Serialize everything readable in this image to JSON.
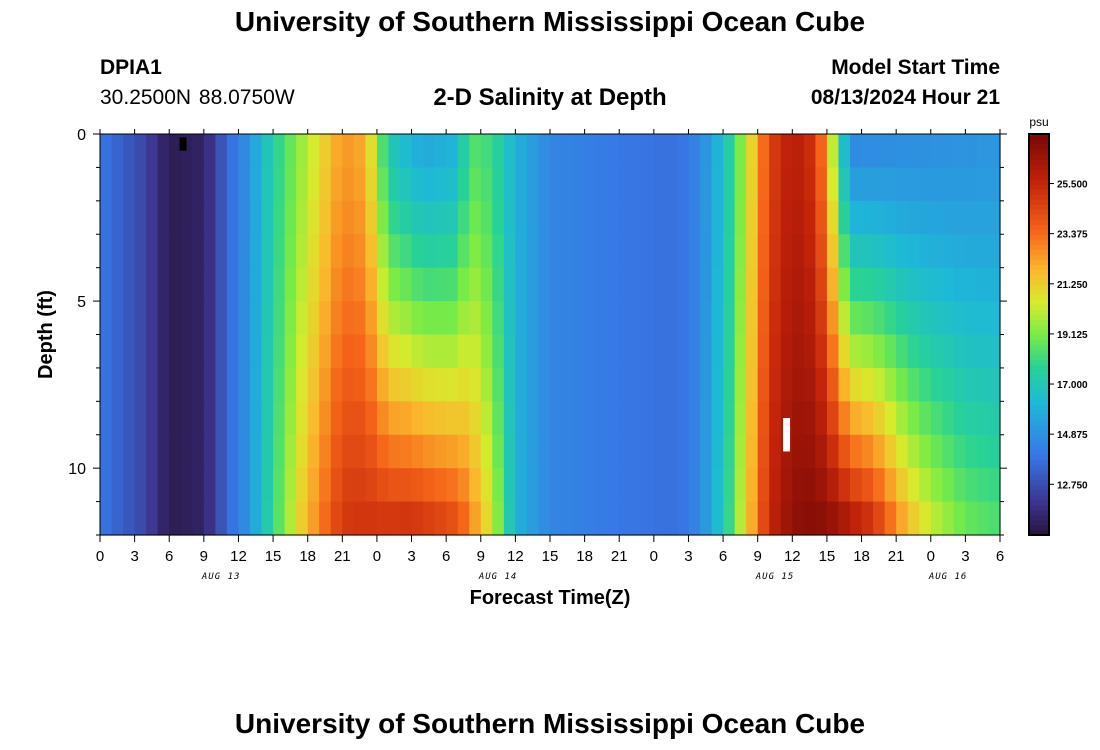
{
  "header": {
    "title": "University of Southern Mississippi Ocean Cube",
    "station": "DPIA1",
    "coords": "30.2500N  88.0750W",
    "subtitle": "2-D Salinity at Depth",
    "start_label": "Model Start Time",
    "start_value": "08/13/2024 Hour 21"
  },
  "footer": {
    "title": "University of Southern Mississippi Ocean Cube"
  },
  "chart_data": {
    "type": "heatmap",
    "title": "2-D Salinity at Depth",
    "xlabel": "Forecast Time(Z)",
    "ylabel": "Depth (ft)",
    "xlim_hours": [
      0,
      78
    ],
    "ylim": [
      0,
      12
    ],
    "y_ticks": [
      0,
      5,
      10
    ],
    "x_tick_hours": [
      0,
      3,
      6,
      9,
      12,
      15,
      18,
      21,
      24,
      27,
      30,
      33,
      36,
      39,
      42,
      45,
      48,
      51,
      54,
      57,
      60,
      63,
      66,
      69,
      72,
      75,
      78
    ],
    "x_tick_labels": [
      "0",
      "3",
      "6",
      "9",
      "12",
      "15",
      "18",
      "21",
      "0",
      "3",
      "6",
      "9",
      "12",
      "15",
      "18",
      "21",
      "0",
      "3",
      "6",
      "9",
      "12",
      "15",
      "18",
      "21",
      "0",
      "3",
      "6"
    ],
    "date_labels": [
      {
        "label": "AUG 13",
        "hour": 10.5
      },
      {
        "label": "AUG 14",
        "hour": 34.5
      },
      {
        "label": "AUG 15",
        "hour": 58.5
      },
      {
        "label": "AUG 16",
        "hour": 73.5
      }
    ],
    "colorbar": {
      "unit": "psu",
      "min": 10.6,
      "max": 27.6,
      "ticks": [
        12.75,
        14.875,
        17.0,
        19.125,
        21.25,
        23.375,
        25.5
      ],
      "tick_labels": [
        "12.750",
        "14.875",
        "17.000",
        "19.125",
        "21.250",
        "23.375",
        "25.500"
      ]
    },
    "depth_levels": 12,
    "surface_salinity_by_hour": [
      [
        0,
        14.0
      ],
      [
        4,
        12.5
      ],
      [
        6,
        11.0
      ],
      [
        9,
        11.3
      ],
      [
        11,
        13.5
      ],
      [
        13,
        15.0
      ],
      [
        15,
        17.5
      ],
      [
        18,
        20.0
      ],
      [
        21,
        22.5
      ],
      [
        23,
        22.0
      ],
      [
        24,
        19.5
      ],
      [
        25,
        17.0
      ],
      [
        28,
        15.5
      ],
      [
        31,
        16.0
      ],
      [
        32,
        18.5
      ],
      [
        34,
        18.0
      ],
      [
        36,
        16.0
      ],
      [
        39,
        14.5
      ],
      [
        45,
        14.0
      ],
      [
        50,
        13.8
      ],
      [
        52,
        14.5
      ],
      [
        54,
        16.5
      ],
      [
        56,
        20.0
      ],
      [
        58,
        24.5
      ],
      [
        60,
        26.0
      ],
      [
        62,
        25.0
      ],
      [
        63,
        22.0
      ],
      [
        64,
        18.0
      ],
      [
        65,
        14.5
      ],
      [
        78,
        15.0
      ]
    ],
    "bottom_salinity_by_hour": [
      [
        0,
        14.0
      ],
      [
        4,
        12.5
      ],
      [
        6,
        11.0
      ],
      [
        9,
        11.3
      ],
      [
        11,
        13.5
      ],
      [
        13,
        15.0
      ],
      [
        15,
        18.0
      ],
      [
        18,
        22.0
      ],
      [
        21,
        25.0
      ],
      [
        27,
        25.5
      ],
      [
        31,
        24.5
      ],
      [
        34,
        20.5
      ],
      [
        36,
        16.0
      ],
      [
        39,
        14.5
      ],
      [
        45,
        14.0
      ],
      [
        50,
        13.8
      ],
      [
        52,
        14.5
      ],
      [
        54,
        17.0
      ],
      [
        56,
        21.0
      ],
      [
        58,
        25.5
      ],
      [
        60,
        27.0
      ],
      [
        62,
        27.3
      ],
      [
        64,
        27.0
      ],
      [
        67,
        25.5
      ],
      [
        70,
        22.0
      ],
      [
        72,
        20.5
      ],
      [
        75,
        19.0
      ],
      [
        78,
        18.5
      ]
    ],
    "markers": [
      {
        "hour": 7.2,
        "depth_top": 0.1,
        "depth_bottom": 0.5,
        "color": "black"
      },
      {
        "hour": 59.5,
        "depth_top": 8.5,
        "depth_bottom": 9.5,
        "color": "white"
      }
    ]
  }
}
